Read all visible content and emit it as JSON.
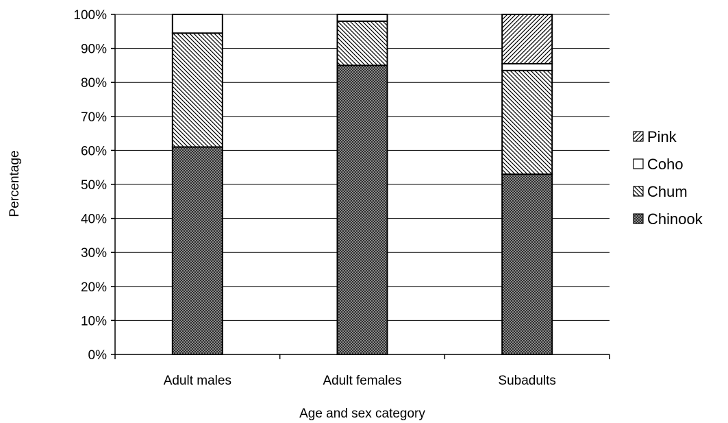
{
  "chart_data": {
    "type": "bar",
    "stacked": true,
    "percent": true,
    "categories": [
      "Adult males",
      "Adult females",
      "Subadults"
    ],
    "series": [
      {
        "name": "Chinook",
        "values": [
          61,
          85,
          53
        ],
        "pattern": "dense-dots"
      },
      {
        "name": "Chum",
        "values": [
          33.5,
          13,
          30.5
        ],
        "pattern": "diagonal-back"
      },
      {
        "name": "Coho",
        "values": [
          5.5,
          2,
          2
        ],
        "pattern": "solid-white"
      },
      {
        "name": "Pink",
        "values": [
          0,
          0,
          14.5
        ],
        "pattern": "diagonal-forward"
      }
    ],
    "legend_order": [
      "Pink",
      "Coho",
      "Chum",
      "Chinook"
    ],
    "xlabel": "Age and sex category",
    "ylabel": "Percentage",
    "ylim": [
      0,
      100
    ],
    "yticks": [
      "0%",
      "10%",
      "20%",
      "30%",
      "40%",
      "50%",
      "60%",
      "70%",
      "80%",
      "90%",
      "100%"
    ],
    "grid": true,
    "legend_position": "right"
  }
}
